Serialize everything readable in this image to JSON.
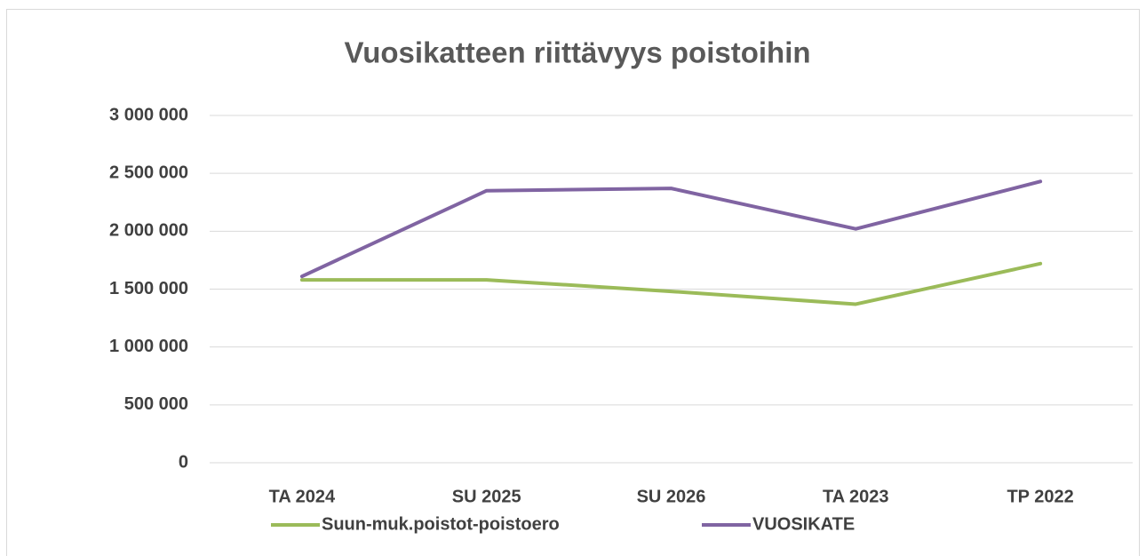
{
  "chart_data": {
    "type": "line",
    "title": "Vuosikatteen riittävyys poistoihin",
    "categories": [
      "TA 2024",
      "SU 2025",
      "SU 2026",
      "TA 2023",
      "TP 2022"
    ],
    "series": [
      {
        "name": "Suun-muk.poistot-poistoero",
        "color": "#9bbb59",
        "values": [
          1580000,
          1580000,
          1480000,
          1370000,
          1720000
        ]
      },
      {
        "name": "VUOSIKATE",
        "color": "#8064a2",
        "values": [
          1610000,
          2350000,
          2370000,
          2020000,
          2430000
        ]
      }
    ],
    "ylim": [
      0,
      3000000
    ],
    "yticks": [
      0,
      {
        "value": 500000,
        "label": "500 000"
      },
      {
        "value": 1000000,
        "label": "1 000 000"
      },
      {
        "value": 1500000,
        "label": "1 500 000"
      },
      {
        "value": 2000000,
        "label": "2 000 000"
      },
      {
        "value": 2500000,
        "label": "2 500 000"
      },
      {
        "value": 3000000,
        "label": "3 000 000"
      }
    ],
    "grid": true,
    "legend": "bottom"
  }
}
